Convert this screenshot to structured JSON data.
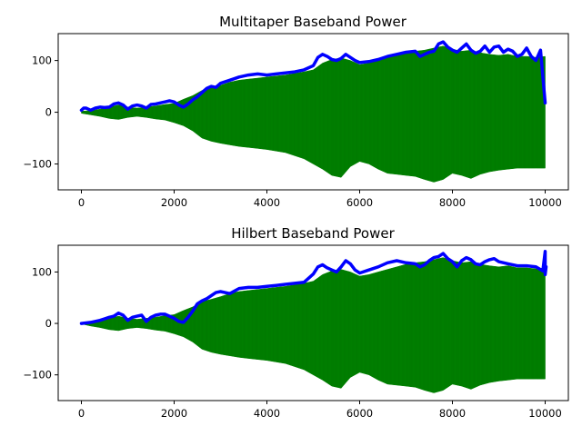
{
  "chart_data": [
    {
      "type": "line",
      "title": "Multitaper Baseband Power",
      "xlabel": "",
      "ylabel": "",
      "xlim": [
        -500,
        10500
      ],
      "ylim": [
        -150,
        152
      ],
      "xticks": [
        0,
        2000,
        4000,
        6000,
        8000,
        10000
      ],
      "yticks": [
        -100,
        0,
        100
      ],
      "x_tick_labels": [
        "0",
        "2000",
        "4000",
        "6000",
        "8000",
        "10000"
      ],
      "y_tick_labels": [
        "−100",
        "0",
        "100"
      ],
      "grid": false,
      "series": [
        {
          "role": "signal",
          "color": "#008000",
          "style": "dense oscillation (filled band)",
          "x": [
            0,
            200,
            400,
            600,
            800,
            1000,
            1200,
            1400,
            1600,
            1800,
            2000,
            2200,
            2400,
            2600,
            2800,
            3000,
            3200,
            3400,
            3600,
            3800,
            4000,
            4200,
            4400,
            4600,
            4800,
            5000,
            5200,
            5400,
            5600,
            5800,
            6000,
            6200,
            6400,
            6600,
            6800,
            7000,
            7200,
            7400,
            7600,
            7800,
            8000,
            8200,
            8400,
            8600,
            8800,
            9000,
            9200,
            9400,
            9600,
            9800,
            10000
          ],
          "upper": [
            2,
            3,
            6,
            10,
            14,
            10,
            8,
            10,
            12,
            15,
            17,
            25,
            32,
            42,
            47,
            52,
            58,
            62,
            64,
            66,
            68,
            70,
            72,
            75,
            78,
            82,
            95,
            102,
            105,
            100,
            92,
            95,
            100,
            105,
            110,
            115,
            118,
            120,
            124,
            128,
            122,
            118,
            120,
            115,
            112,
            110,
            112,
            108,
            108,
            106,
            108
          ],
          "lower": [
            -2,
            -5,
            -8,
            -12,
            -14,
            -10,
            -8,
            -10,
            -13,
            -15,
            -20,
            -26,
            -36,
            -50,
            -56,
            -60,
            -63,
            -66,
            -68,
            -70,
            -72,
            -75,
            -78,
            -84,
            -90,
            -100,
            -110,
            -122,
            -126,
            -105,
            -95,
            -100,
            -110,
            -118,
            -120,
            -122,
            -124,
            -130,
            -135,
            -130,
            -118,
            -122,
            -128,
            -120,
            -115,
            -112,
            -110,
            -108,
            -108,
            -108,
            -108
          ]
        },
        {
          "role": "envelope",
          "color": "#0000ff",
          "x": [
            0,
            50,
            100,
            200,
            300,
            400,
            500,
            600,
            700,
            800,
            900,
            1000,
            1100,
            1200,
            1300,
            1400,
            1500,
            1600,
            1700,
            1800,
            1900,
            2000,
            2100,
            2200,
            2300,
            2400,
            2500,
            2600,
            2700,
            2800,
            2900,
            3000,
            3200,
            3400,
            3600,
            3800,
            4000,
            4200,
            4400,
            4600,
            4800,
            5000,
            5100,
            5200,
            5300,
            5400,
            5500,
            5600,
            5700,
            5800,
            5900,
            6000,
            6200,
            6400,
            6600,
            6800,
            7000,
            7200,
            7300,
            7400,
            7500,
            7600,
            7700,
            7800,
            7900,
            8000,
            8100,
            8200,
            8300,
            8400,
            8500,
            8600,
            8700,
            8800,
            8900,
            9000,
            9100,
            9200,
            9300,
            9400,
            9500,
            9600,
            9700,
            9800,
            9850,
            9900,
            9950,
            10000
          ],
          "y": [
            4,
            8,
            8,
            4,
            8,
            10,
            9,
            10,
            16,
            18,
            14,
            6,
            12,
            14,
            12,
            8,
            15,
            16,
            18,
            20,
            22,
            20,
            14,
            10,
            16,
            24,
            30,
            38,
            46,
            50,
            48,
            56,
            62,
            68,
            72,
            74,
            72,
            74,
            76,
            78,
            82,
            90,
            106,
            112,
            108,
            102,
            100,
            104,
            112,
            106,
            100,
            96,
            98,
            102,
            108,
            112,
            116,
            118,
            108,
            112,
            116,
            118,
            132,
            136,
            126,
            120,
            116,
            124,
            132,
            120,
            114,
            118,
            128,
            116,
            126,
            128,
            116,
            122,
            118,
            108,
            112,
            124,
            108,
            100,
            110,
            120,
            70,
            18
          ]
        }
      ]
    },
    {
      "type": "line",
      "title": "Hilbert Baseband Power",
      "xlabel": "",
      "ylabel": "",
      "xlim": [
        -500,
        10500
      ],
      "ylim": [
        -150,
        152
      ],
      "xticks": [
        0,
        2000,
        4000,
        6000,
        8000,
        10000
      ],
      "yticks": [
        -100,
        0,
        100
      ],
      "x_tick_labels": [
        "0",
        "2000",
        "4000",
        "6000",
        "8000",
        "10000"
      ],
      "y_tick_labels": [
        "−100",
        "0",
        "100"
      ],
      "grid": false,
      "series": [
        {
          "role": "signal",
          "color": "#008000",
          "style": "dense oscillation (filled band)",
          "x": [
            0,
            200,
            400,
            600,
            800,
            1000,
            1200,
            1400,
            1600,
            1800,
            2000,
            2200,
            2400,
            2600,
            2800,
            3000,
            3200,
            3400,
            3600,
            3800,
            4000,
            4200,
            4400,
            4600,
            4800,
            5000,
            5200,
            5400,
            5600,
            5800,
            6000,
            6200,
            6400,
            6600,
            6800,
            7000,
            7200,
            7400,
            7600,
            7800,
            8000,
            8200,
            8400,
            8600,
            8800,
            9000,
            9200,
            9400,
            9600,
            9800,
            10000
          ],
          "upper": [
            1,
            3,
            6,
            10,
            14,
            10,
            8,
            10,
            12,
            15,
            17,
            25,
            32,
            42,
            47,
            52,
            58,
            62,
            64,
            66,
            68,
            70,
            72,
            75,
            78,
            82,
            95,
            102,
            105,
            100,
            92,
            95,
            100,
            105,
            110,
            115,
            118,
            120,
            124,
            128,
            122,
            118,
            120,
            115,
            112,
            110,
            112,
            108,
            108,
            106,
            108
          ],
          "lower": [
            -1,
            -5,
            -8,
            -12,
            -14,
            -10,
            -8,
            -10,
            -13,
            -15,
            -20,
            -26,
            -36,
            -50,
            -56,
            -60,
            -63,
            -66,
            -68,
            -70,
            -72,
            -75,
            -78,
            -84,
            -90,
            -100,
            -110,
            -122,
            -126,
            -105,
            -95,
            -100,
            -110,
            -118,
            -120,
            -122,
            -124,
            -130,
            -135,
            -130,
            -118,
            -122,
            -128,
            -120,
            -115,
            -112,
            -110,
            -108,
            -108,
            -108,
            -108
          ]
        },
        {
          "role": "envelope",
          "color": "#0000ff",
          "x": [
            0,
            100,
            200,
            300,
            400,
            500,
            600,
            700,
            800,
            900,
            1000,
            1100,
            1200,
            1300,
            1400,
            1500,
            1600,
            1700,
            1800,
            1900,
            2000,
            2100,
            2200,
            2300,
            2400,
            2500,
            2600,
            2700,
            2800,
            2900,
            3000,
            3200,
            3400,
            3600,
            3800,
            4000,
            4200,
            4400,
            4600,
            4800,
            5000,
            5100,
            5200,
            5300,
            5400,
            5500,
            5600,
            5700,
            5800,
            5900,
            6000,
            6200,
            6400,
            6600,
            6800,
            7000,
            7200,
            7300,
            7400,
            7500,
            7600,
            7700,
            7800,
            7900,
            8000,
            8100,
            8200,
            8300,
            8400,
            8500,
            8600,
            8700,
            8800,
            8900,
            9000,
            9200,
            9400,
            9600,
            9800,
            9950,
            10000,
            10000,
            10020
          ],
          "y": [
            0,
            1,
            2,
            4,
            6,
            9,
            12,
            14,
            20,
            16,
            6,
            12,
            14,
            16,
            4,
            12,
            16,
            18,
            18,
            14,
            10,
            4,
            2,
            12,
            24,
            38,
            44,
            48,
            54,
            60,
            62,
            58,
            68,
            70,
            70,
            72,
            74,
            76,
            78,
            80,
            96,
            110,
            114,
            108,
            104,
            100,
            110,
            122,
            116,
            104,
            98,
            104,
            110,
            118,
            122,
            118,
            116,
            110,
            114,
            122,
            128,
            130,
            136,
            126,
            120,
            110,
            122,
            128,
            124,
            116,
            114,
            120,
            124,
            126,
            120,
            116,
            112,
            112,
            110,
            102,
            140,
            95,
            110
          ]
        }
      ]
    }
  ]
}
